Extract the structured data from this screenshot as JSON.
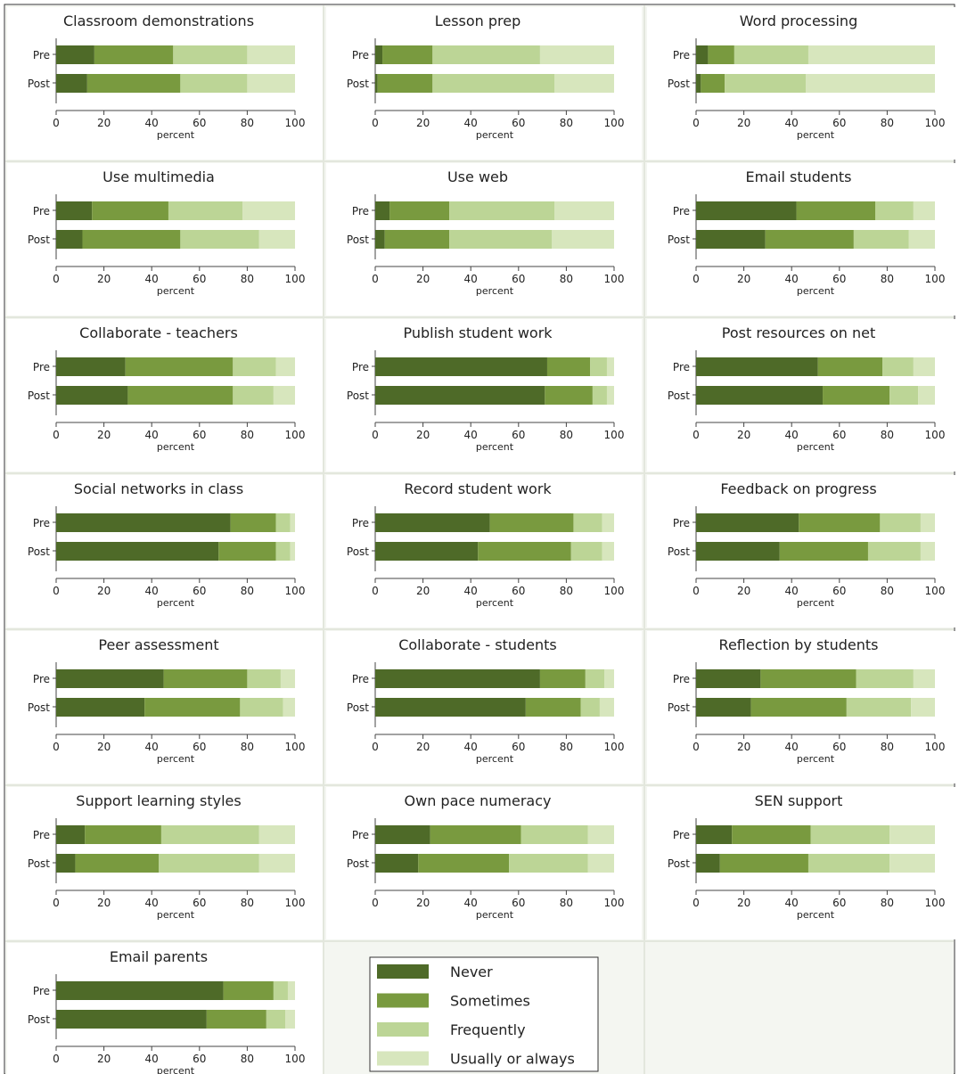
{
  "chart_data": {
    "type": "bar",
    "orientation": "horizontal",
    "stacked": true,
    "row_labels": [
      "Pre",
      "Post"
    ],
    "xlabel": "percent",
    "xlim": [
      0,
      100
    ],
    "xticks": [
      0,
      20,
      40,
      60,
      80,
      100
    ],
    "legend_position": "bottom-center",
    "categories_legend": [
      "Never",
      "Sometimes",
      "Frequently",
      "Usually or always"
    ],
    "colors": [
      "#4e6a28",
      "#799a3f",
      "#bcd596",
      "#d7e6bd"
    ],
    "panels": [
      {
        "title": "Classroom demonstrations",
        "pre": [
          16,
          33,
          31,
          20
        ],
        "post": [
          13,
          39,
          28,
          20
        ]
      },
      {
        "title": "Lesson prep",
        "pre": [
          3,
          21,
          45,
          31
        ],
        "post": [
          1,
          23,
          51,
          25
        ]
      },
      {
        "title": "Word processing",
        "pre": [
          5,
          11,
          31,
          53
        ],
        "post": [
          2,
          10,
          34,
          54
        ]
      },
      {
        "title": "Use multimedia",
        "pre": [
          15,
          32,
          31,
          22
        ],
        "post": [
          11,
          41,
          33,
          15
        ]
      },
      {
        "title": "Use web",
        "pre": [
          6,
          25,
          44,
          25
        ],
        "post": [
          4,
          27,
          43,
          26
        ]
      },
      {
        "title": "Email students",
        "pre": [
          42,
          33,
          16,
          9
        ],
        "post": [
          29,
          37,
          23,
          11
        ]
      },
      {
        "title": "Collaborate - teachers",
        "pre": [
          29,
          45,
          18,
          8
        ],
        "post": [
          30,
          44,
          17,
          9
        ]
      },
      {
        "title": "Publish student work",
        "pre": [
          72,
          18,
          7,
          3
        ],
        "post": [
          71,
          20,
          6,
          3
        ]
      },
      {
        "title": "Post resources on net",
        "pre": [
          51,
          27,
          13,
          9
        ],
        "post": [
          53,
          28,
          12,
          7
        ]
      },
      {
        "title": "Social networks in class",
        "pre": [
          73,
          19,
          6,
          2
        ],
        "post": [
          68,
          24,
          6,
          2
        ]
      },
      {
        "title": "Record student work",
        "pre": [
          48,
          35,
          12,
          5
        ],
        "post": [
          43,
          39,
          13,
          5
        ]
      },
      {
        "title": "Feedback on progress",
        "pre": [
          43,
          34,
          17,
          6
        ],
        "post": [
          35,
          37,
          22,
          6
        ]
      },
      {
        "title": "Peer assessment",
        "pre": [
          45,
          35,
          14,
          6
        ],
        "post": [
          37,
          40,
          18,
          5
        ]
      },
      {
        "title": "Collaborate - students",
        "pre": [
          69,
          19,
          8,
          4
        ],
        "post": [
          63,
          23,
          8,
          6
        ]
      },
      {
        "title": "Reflection by students",
        "pre": [
          27,
          40,
          24,
          9
        ],
        "post": [
          23,
          40,
          27,
          10
        ]
      },
      {
        "title": "Support learning styles",
        "pre": [
          12,
          32,
          41,
          15
        ],
        "post": [
          8,
          35,
          42,
          15
        ]
      },
      {
        "title": "Own pace numeracy",
        "pre": [
          23,
          38,
          28,
          11
        ],
        "post": [
          18,
          38,
          33,
          11
        ]
      },
      {
        "title": "SEN support",
        "pre": [
          15,
          33,
          33,
          19
        ],
        "post": [
          10,
          37,
          34,
          19
        ]
      },
      {
        "title": "Email parents",
        "pre": [
          70,
          21,
          6,
          3
        ],
        "post": [
          63,
          25,
          8,
          4
        ]
      }
    ]
  }
}
